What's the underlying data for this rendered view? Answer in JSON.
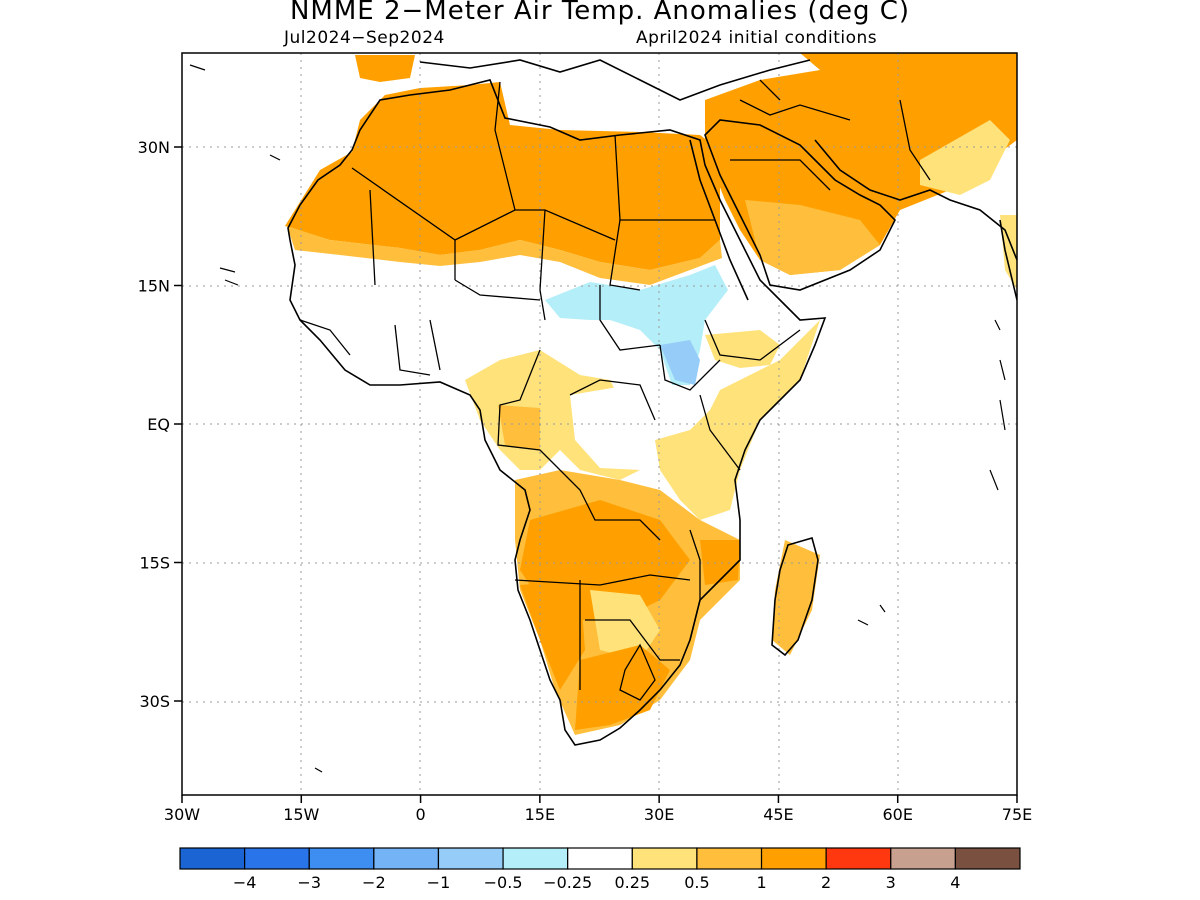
{
  "title": "NMME 2−Meter Air Temp. Anomalies (deg C)",
  "subtitle_left": "Jul2024−Sep2024",
  "subtitle_right": "April2024 initial conditions",
  "lat_ticks": [
    {
      "value": 30,
      "label": "30N"
    },
    {
      "value": 15,
      "label": "15N"
    },
    {
      "value": 0,
      "label": "EQ"
    },
    {
      "value": -15,
      "label": "15S"
    },
    {
      "value": -30,
      "label": "30S"
    }
  ],
  "lon_ticks": [
    {
      "value": -30,
      "label": "30W"
    },
    {
      "value": -15,
      "label": "15W"
    },
    {
      "value": 0,
      "label": "0"
    },
    {
      "value": 15,
      "label": "15E"
    },
    {
      "value": 30,
      "label": "30E"
    },
    {
      "value": 45,
      "label": "45E"
    },
    {
      "value": 60,
      "label": "60E"
    },
    {
      "value": 75,
      "label": "75E"
    }
  ],
  "colorbar": {
    "colors": [
      "#1a64d4",
      "#2a74ea",
      "#3d8ef0",
      "#74b4f6",
      "#96ccf8",
      "#b4eef8",
      "#ffffff",
      "#ffe27a",
      "#ffbf3c",
      "#ffa000",
      "#ff3810",
      "#c8a090",
      "#7a5040"
    ],
    "labels": [
      "−4",
      "−3",
      "−2",
      "−1",
      "−0.5",
      "−0.25",
      "0.25",
      "0.5",
      "1",
      "2",
      "3",
      "4"
    ]
  }
}
